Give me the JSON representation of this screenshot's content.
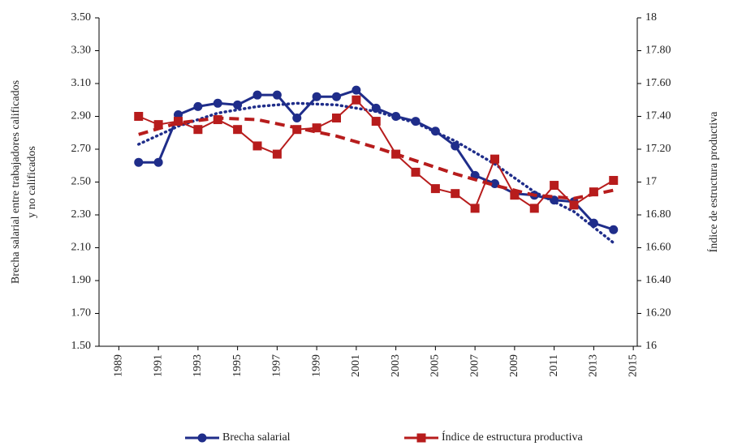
{
  "chart_data": {
    "type": "line",
    "y_label": "Brecha salarial entre trabajadores calificados y no calificados",
    "y2_label": "Índice de estructura productiva",
    "x": [
      1990,
      1991,
      1992,
      1993,
      1994,
      1995,
      1996,
      1997,
      1998,
      1999,
      2000,
      2001,
      2002,
      2003,
      2004,
      2005,
      2006,
      2007,
      2008,
      2009,
      2010,
      2011,
      2012,
      2013,
      2014
    ],
    "xlim": [
      1988,
      2015.2
    ],
    "xticks": [
      1989,
      1991,
      1993,
      1995,
      1997,
      1999,
      2001,
      2003,
      2005,
      2007,
      2009,
      2011,
      2013,
      2015
    ],
    "ylim": [
      1.5,
      3.5
    ],
    "yticks": [
      {
        "value": 1.5,
        "label": "1.50"
      },
      {
        "value": 1.7,
        "label": "1.70"
      },
      {
        "value": 1.9,
        "label": "1.90"
      },
      {
        "value": 2.1,
        "label": "2.10"
      },
      {
        "value": 2.3,
        "label": "2.30"
      },
      {
        "value": 2.5,
        "label": "2.50"
      },
      {
        "value": 2.7,
        "label": "2.70"
      },
      {
        "value": 2.9,
        "label": "2.90"
      },
      {
        "value": 3.1,
        "label": "3.10"
      },
      {
        "value": 3.3,
        "label": "3.30"
      },
      {
        "value": 3.5,
        "label": "3.50"
      }
    ],
    "y2lim": [
      16,
      18
    ],
    "y2ticks": [
      16,
      {
        "value": 16.2,
        "label": "16.20"
      },
      {
        "value": 16.4,
        "label": "16.40"
      },
      {
        "value": 16.6,
        "label": "16.60"
      },
      {
        "value": 16.8,
        "label": "16.80"
      },
      17,
      {
        "value": 17.2,
        "label": "17.20"
      },
      {
        "value": 17.4,
        "label": "17.40"
      },
      {
        "value": 17.6,
        "label": "17.60"
      },
      {
        "value": 17.8,
        "label": "17.80"
      },
      18
    ],
    "legend": "bottom",
    "series": [
      {
        "name": "Brecha salarial",
        "color": "#1f2d8a",
        "marker": "circle",
        "values": [
          2.62,
          2.62,
          2.91,
          2.96,
          2.98,
          2.97,
          3.03,
          3.03,
          2.89,
          3.02,
          3.02,
          3.06,
          2.95,
          2.9,
          2.87,
          2.81,
          2.72,
          2.54,
          2.49,
          2.43,
          2.42,
          2.39,
          2.38,
          2.25,
          2.21
        ],
        "trend_x": [
          1990,
          1992,
          1994,
          1996,
          1998,
          2000,
          2002,
          2004,
          2006,
          2008,
          2010,
          2012,
          2014
        ],
        "trend_values": [
          2.73,
          2.84,
          2.92,
          2.96,
          2.98,
          2.97,
          2.93,
          2.86,
          2.75,
          2.61,
          2.44,
          2.32,
          2.13
        ]
      },
      {
        "name": "Índice de estructura productiva",
        "color": "#b71c1c",
        "marker": "square",
        "axis": "y2",
        "values": [
          17.4,
          17.35,
          17.37,
          17.32,
          17.38,
          17.32,
          17.22,
          17.17,
          17.32,
          17.33,
          17.39,
          17.5,
          17.37,
          17.17,
          17.06,
          16.96,
          16.93,
          16.84,
          17.14,
          16.92,
          16.84,
          16.98,
          16.86,
          16.94,
          17.01
        ],
        "trend_x": [
          1990,
          1992,
          1994,
          1996,
          1998,
          2000,
          2002,
          2004,
          2006,
          2008,
          2010,
          2012,
          2014
        ],
        "trend_values": [
          17.29,
          17.36,
          17.39,
          17.38,
          17.33,
          17.28,
          17.21,
          17.13,
          17.05,
          16.98,
          16.92,
          16.9,
          16.95
        ]
      }
    ]
  }
}
